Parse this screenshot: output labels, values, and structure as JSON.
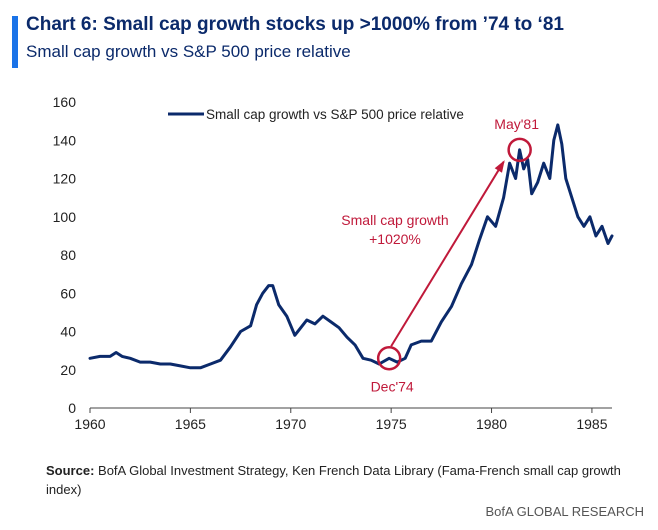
{
  "header": {
    "title": "Chart 6: Small cap growth stocks up >1000% from ’74 to ‘81",
    "subtitle": "Small cap growth vs S&P 500 price relative"
  },
  "colors": {
    "series": "#0b2a6b",
    "annotation": "#c0193a",
    "accent": "#1a73e8"
  },
  "chart_data": {
    "type": "line",
    "title": "Chart 6: Small cap growth stocks up >1000% from ’74 to ‘81",
    "subtitle": "Small cap growth vs S&P 500 price relative",
    "xlabel": "",
    "ylabel": "",
    "xlim": [
      1960,
      1986
    ],
    "ylim": [
      0,
      160
    ],
    "x_ticks": [
      "1960",
      "1965",
      "1970",
      "1975",
      "1980",
      "1985"
    ],
    "y_ticks": [
      "0",
      "20",
      "40",
      "60",
      "80",
      "100",
      "120",
      "140",
      "160"
    ],
    "grid": false,
    "legend": "top-center",
    "series": [
      {
        "name": "Small cap growth vs S&P 500 price relative",
        "x": [
          1960.0,
          1960.5,
          1961.0,
          1961.3,
          1961.6,
          1962.0,
          1962.5,
          1963.0,
          1963.5,
          1964.0,
          1964.5,
          1965.0,
          1965.5,
          1966.0,
          1966.5,
          1967.0,
          1967.5,
          1968.0,
          1968.3,
          1968.6,
          1968.9,
          1969.1,
          1969.4,
          1969.8,
          1970.2,
          1970.5,
          1970.8,
          1971.2,
          1971.6,
          1972.0,
          1972.4,
          1972.8,
          1973.2,
          1973.6,
          1974.0,
          1974.4,
          1974.9,
          1975.3,
          1975.7,
          1976.0,
          1976.5,
          1977.0,
          1977.5,
          1978.0,
          1978.5,
          1979.0,
          1979.4,
          1979.8,
          1980.2,
          1980.6,
          1980.9,
          1981.2,
          1981.4,
          1981.6,
          1981.8,
          1982.0,
          1982.3,
          1982.6,
          1982.9,
          1983.1,
          1983.3,
          1983.5,
          1983.7,
          1984.0,
          1984.3,
          1984.6,
          1984.9,
          1985.2,
          1985.5,
          1985.8,
          1986.0
        ],
        "values": [
          26,
          27,
          27,
          29,
          27,
          26,
          24,
          24,
          23,
          23,
          22,
          21,
          21,
          23,
          25,
          32,
          40,
          43,
          54,
          60,
          64,
          64,
          54,
          48,
          38,
          42,
          46,
          44,
          48,
          45,
          42,
          37,
          33,
          26,
          25,
          23,
          26,
          24,
          26,
          33,
          35,
          35,
          45,
          53,
          65,
          75,
          88,
          100,
          95,
          110,
          128,
          120,
          135,
          125,
          130,
          112,
          118,
          128,
          120,
          140,
          148,
          138,
          120,
          110,
          100,
          95,
          100,
          90,
          95,
          86,
          90
        ]
      }
    ],
    "annotations": [
      {
        "label": "May'81",
        "x": 1981.4,
        "y": 135
      },
      {
        "label": "Dec'74",
        "x": 1974.9,
        "y": 26
      },
      {
        "label": "Small cap growth",
        "x": 1975.1,
        "y": 93
      },
      {
        "label": "+1020%",
        "x": 1975.1,
        "y": 88
      }
    ]
  },
  "footer": {
    "source_label": "Source:",
    "source_text": " BofA Global Investment Strategy, Ken French Data Library (Fama-French small cap growth index)",
    "brand": "BofA GLOBAL RESEARCH"
  }
}
